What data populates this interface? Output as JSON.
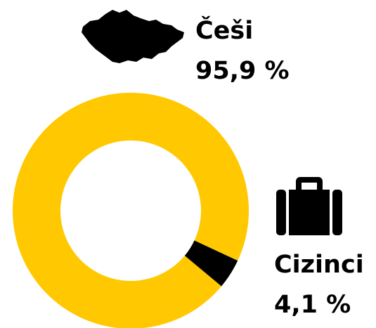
{
  "chart_data": {
    "type": "pie",
    "categories": [
      "Češi",
      "Cizinci"
    ],
    "values": [
      95.9,
      4.1
    ],
    "value_labels": [
      "95,9 %",
      "4,1 %"
    ],
    "colors": [
      "#ffc800",
      "#000000"
    ]
  }
}
